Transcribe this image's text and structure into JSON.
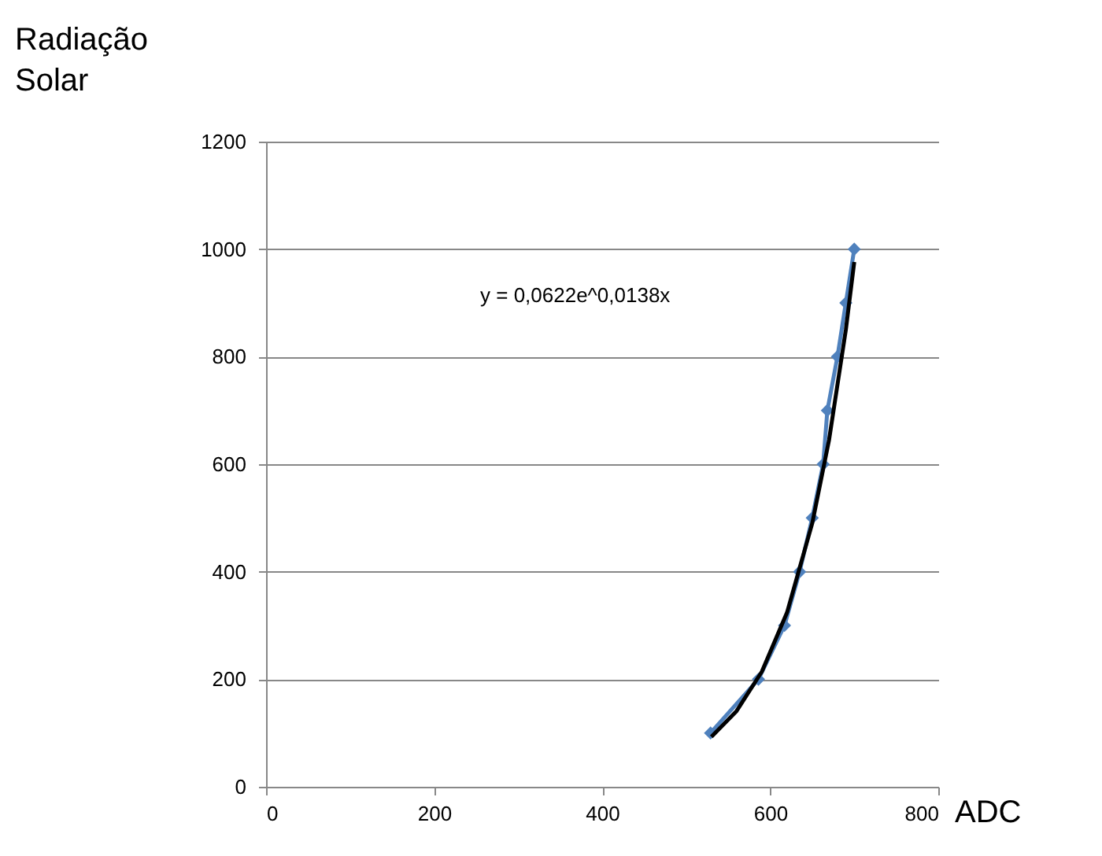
{
  "chart_data": {
    "type": "line",
    "xlabel": "ADC",
    "ylabel": "Radiação Solar",
    "xlim": [
      0,
      800
    ],
    "xticks": [
      0,
      200,
      400,
      600,
      800
    ],
    "ylim": [
      0,
      1200
    ],
    "yticks": [
      0,
      200,
      400,
      600,
      800,
      1000,
      1200
    ],
    "grid": "y",
    "marker": "diamond",
    "annotations": [
      "y = 0,0622e^0,0138x"
    ],
    "series": [
      {
        "color": "#4f81bd",
        "x": [
          529,
          586,
          617,
          635,
          650,
          663,
          668,
          680,
          690,
          700
        ],
        "values": [
          100,
          200,
          300,
          400,
          500,
          600,
          700,
          800,
          900,
          1000
        ]
      },
      {
        "type": "line",
        "color": "#000000",
        "marker": "none",
        "x": [
          530,
          560,
          590,
          620,
          650,
          670,
          690,
          700
        ],
        "values": [
          93,
          141,
          214,
          324,
          490,
          645,
          850,
          976
        ]
      }
    ]
  }
}
